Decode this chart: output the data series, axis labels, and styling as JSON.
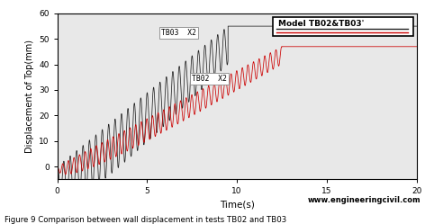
{
  "xlabel": "Time(s)",
  "ylabel": "Displacement of Top(mm)",
  "xlim": [
    0,
    20
  ],
  "ylim": [
    -5,
    60
  ],
  "yticks": [
    0,
    10,
    20,
    30,
    40,
    50,
    60
  ],
  "xticks": [
    0,
    5,
    10,
    15,
    20
  ],
  "tb03_label": "TB03  X2",
  "tb02_label": "TB02  X2",
  "legend_label": "Model TB02&TB03'",
  "tb03_color": "#222222",
  "tb02_color": "#cc0000",
  "caption": "Figure 9 Comparison between wall displacement in tests TB02 and TB03",
  "website": "www.engineeringcivil.com",
  "tb03_final": 55,
  "tb02_final": 47,
  "tb03_settle_time": 9.5,
  "tb02_settle_time": 12.5,
  "osc_freq_tb03": 2.8,
  "osc_freq_tb02": 3.2,
  "bg_color": "#f0f0f0"
}
